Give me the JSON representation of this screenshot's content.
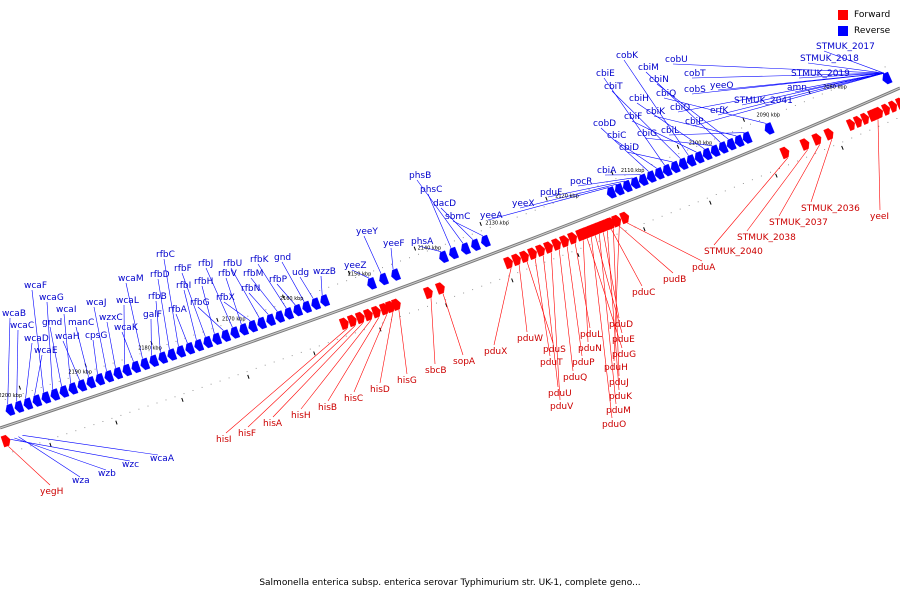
{
  "colors": {
    "forward": "#ff0000",
    "reverse": "#0000ff",
    "backbone": "#7a7a7a",
    "label_fwd": "#cc0000",
    "label_rev": "#0000cc"
  },
  "legend": {
    "forward": "Forward",
    "reverse": "Reverse"
  },
  "caption": "Salmonella enterica subsp. enterica serovar Typhimurium str. UK-1, complete geno...",
  "ticks": [
    "2200 kbp",
    "2190 kbp",
    "2180 kbp",
    "2170 kbp",
    "2160 kbp",
    "2150 kbp",
    "2140 kbp",
    "2130 kbp",
    "2120 kbp",
    "2110 kbp",
    "2100 kbp",
    "2090 kbp",
    "2080 kbp"
  ],
  "reverse_labels": [
    "wcaB",
    "wcaC",
    "wcaD",
    "wcaE",
    "wcaF",
    "wcaG",
    "gmd",
    "wcaI",
    "wcaH",
    "manC",
    "cpsG",
    "wcaJ",
    "wzxC",
    "wcaL",
    "wcaK",
    "wcaM",
    "galF",
    "rfbB",
    "rfbD",
    "rfbC",
    "rfbA",
    "rfbI",
    "rfbF",
    "rfbH",
    "rfbG",
    "rfbJ",
    "rfbV",
    "rfbX",
    "rfbU",
    "rfbN",
    "rfbM",
    "rfbK",
    "rfbP",
    "gnd",
    "udg",
    "wzzB",
    "yeeZ",
    "yeeY",
    "yeeF",
    "phsA",
    "phsC",
    "phsB",
    "dacD",
    "sbmC",
    "yeeA",
    "yeeX",
    "pduF",
    "pocR",
    "cbiA",
    "cobD",
    "cbiC",
    "cbiE",
    "cbiD",
    "cbiT",
    "cobK",
    "cbiF",
    "cbiH",
    "cbiG",
    "cbiM",
    "cbiN",
    "cbiK",
    "cbiL",
    "cbiQ",
    "cbiO",
    "cbiP",
    "cobU",
    "cobS",
    "cobT",
    "yeeO",
    "erfK",
    "STMUK_2041",
    "amn",
    "STMUK_2019",
    "STMUK_2018",
    "STMUK_2017",
    "wcaA",
    "wzc",
    "wzb",
    "wza"
  ],
  "forward_labels": [
    "yegH",
    "hisI",
    "hisF",
    "hisA",
    "hisH",
    "hisB",
    "hisC",
    "hisD",
    "hisG",
    "sbcB",
    "sopA",
    "pduX",
    "pduW",
    "pduS",
    "pduT",
    "pduU",
    "pduV",
    "pduQ",
    "pduP",
    "pduL",
    "pduN",
    "pduO",
    "pduM",
    "pduK",
    "pduJ",
    "pduH",
    "pduG",
    "pduE",
    "pduD",
    "pduC",
    "pudB",
    "pduA",
    "STMUK_2040",
    "STMUK_2038",
    "STMUK_2037",
    "STMUK_2036",
    "yeeI"
  ]
}
